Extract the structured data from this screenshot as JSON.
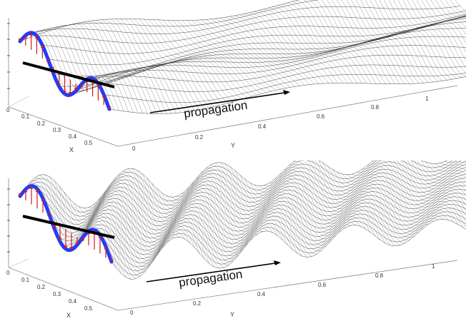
{
  "panels": [
    {
      "id": "top",
      "annotation": "propagation",
      "x_axis_label": "X",
      "y_axis_label": "Y",
      "x_ticks": [
        "0",
        "0.1",
        "0.2",
        "0.3",
        "0.4",
        "0.5"
      ],
      "y_ticks": [
        "0",
        "0.2",
        "0.4",
        "0.6",
        "0.8",
        "1"
      ],
      "surface_ripples": 2
    },
    {
      "id": "bottom",
      "annotation": "propagation",
      "x_axis_label": "X",
      "y_axis_label": "Y",
      "x_ticks": [
        "0",
        "0.1",
        "0.2",
        "0.3",
        "0.4",
        "0.5"
      ],
      "y_ticks": [
        "0",
        "0.2",
        "0.4",
        "0.6",
        "0.8",
        "1"
      ],
      "surface_ripples": 10
    }
  ],
  "colors": {
    "mesh": "#1a1a1a",
    "wave_curve": "#1f3cff",
    "vector_arrows": "#d11a1a",
    "axis_bar": "#000000",
    "axis_lines": "#888888"
  }
}
